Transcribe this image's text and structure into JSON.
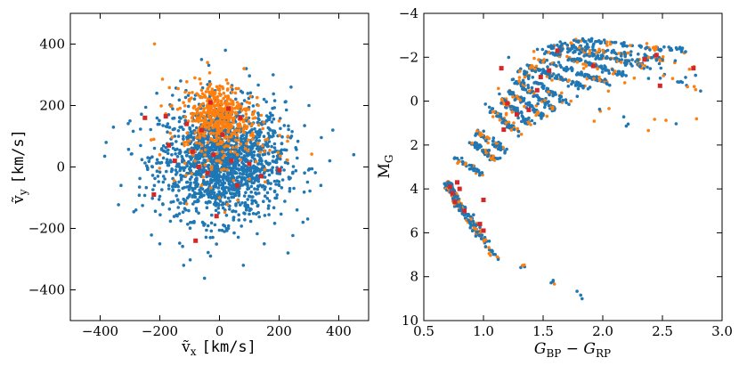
{
  "chart_data": [
    {
      "type": "scatter",
      "xlabel": "ṽx [km/s]",
      "ylabel": "ṽy [km/s]",
      "xlabel_parts": {
        "sym": "ṽ",
        "sub": "x",
        "unit": "[km/s]"
      },
      "ylabel_parts": {
        "sym": "ṽ",
        "sub": "y",
        "unit": "[km/s]"
      },
      "xlim": [
        -500,
        500
      ],
      "ylim": [
        -500,
        500
      ],
      "xticks": [
        -400,
        -200,
        0,
        200,
        400
      ],
      "yticks": [
        -400,
        -200,
        0,
        200,
        400
      ],
      "xtick_labels": [
        "−400",
        "−200",
        "0",
        "200",
        "400"
      ],
      "ytick_labels": [
        "−400",
        "−200",
        "0",
        "200",
        "400"
      ],
      "grid": false,
      "series": [
        {
          "color": "#1f77b4",
          "marker": "circle",
          "description_points": [
            [
              -210,
              240
            ],
            [
              -130,
              280
            ],
            [
              -60,
              350
            ],
            [
              20,
              380
            ],
            [
              90,
              320
            ],
            [
              -300,
              150
            ],
            [
              -380,
              80
            ],
            [
              -330,
              -60
            ],
            [
              -280,
              -140
            ],
            [
              -200,
              -250
            ],
            [
              -120,
              -320
            ],
            [
              -30,
              -290
            ],
            [
              80,
              -320
            ],
            [
              150,
              -250
            ],
            [
              230,
              -280
            ],
            [
              280,
              -180
            ],
            [
              340,
              -60
            ],
            [
              370,
              20
            ],
            [
              380,
              120
            ],
            [
              300,
              200
            ],
            [
              240,
              260
            ],
            [
              180,
              300
            ],
            [
              450,
              40
            ],
            [
              -150,
              100
            ],
            [
              -90,
              40
            ],
            [
              -40,
              -30
            ],
            [
              10,
              60
            ],
            [
              60,
              -80
            ],
            [
              120,
              20
            ],
            [
              -70,
              -150
            ],
            [
              30,
              -200
            ],
            [
              -170,
              -60
            ],
            [
              170,
              120
            ],
            [
              200,
              -60
            ],
            [
              -240,
              30
            ]
          ]
        },
        {
          "color": "#ff7f0e",
          "marker": "circle",
          "description_points": [
            [
              -60,
              250
            ],
            [
              -20,
              240
            ],
            [
              20,
              230
            ],
            [
              60,
              210
            ],
            [
              90,
              190
            ],
            [
              -100,
              220
            ],
            [
              -30,
              200
            ],
            [
              10,
              170
            ],
            [
              50,
              160
            ],
            [
              -80,
              150
            ],
            [
              110,
              140
            ],
            [
              30,
              120
            ],
            [
              -50,
              100
            ],
            [
              0,
              250
            ],
            [
              40,
              260
            ],
            [
              -120,
              80
            ],
            [
              160,
              90
            ],
            [
              -160,
              200
            ],
            [
              -40,
              340
            ],
            [
              80,
              120
            ],
            [
              130,
              200
            ],
            [
              -200,
              40
            ],
            [
              200,
              150
            ],
            [
              0,
              -100
            ],
            [
              -60,
              -60
            ],
            [
              100,
              -40
            ],
            [
              230,
              100
            ],
            [
              -110,
              -120
            ],
            [
              60,
              40
            ],
            [
              -10,
              20
            ]
          ]
        },
        {
          "color": "#d62728",
          "marker": "square",
          "points": [
            [
              -250,
              160
            ],
            [
              -180,
              165
            ],
            [
              -110,
              140
            ],
            [
              -60,
              120
            ],
            [
              10,
              105
            ],
            [
              70,
              160
            ],
            [
              -170,
              70
            ],
            [
              -90,
              50
            ],
            [
              -20,
              40
            ],
            [
              -150,
              20
            ],
            [
              -70,
              0
            ],
            [
              40,
              20
            ],
            [
              100,
              10
            ],
            [
              -40,
              -20
            ],
            [
              60,
              -60
            ],
            [
              140,
              -30
            ],
            [
              -220,
              -90
            ],
            [
              -10,
              -160
            ],
            [
              -80,
              -240
            ],
            [
              200,
              -10
            ],
            [
              -30,
              210
            ],
            [
              30,
              190
            ]
          ]
        }
      ]
    },
    {
      "type": "scatter",
      "xlabel": "GBP − GRP",
      "ylabel": "MG",
      "xlabel_parts": {
        "a": "G",
        "a_sub": "BP",
        "op": " − ",
        "b": "G",
        "b_sub": "RP"
      },
      "ylabel_parts": {
        "sym": "M",
        "sub": "G"
      },
      "xlim": [
        0.5,
        3.0
      ],
      "ylim": [
        10,
        -4
      ],
      "y_inverted": true,
      "xticks": [
        0.5,
        1.0,
        1.5,
        2.0,
        2.5,
        3.0
      ],
      "yticks": [
        -4,
        -2,
        0,
        2,
        4,
        6,
        8,
        10
      ],
      "xtick_labels": [
        "0.5",
        "1.0",
        "1.5",
        "2.0",
        "2.5",
        "3.0"
      ],
      "ytick_labels": [
        "−4",
        "−2",
        "0",
        "2",
        "4",
        "6",
        "8",
        "10"
      ],
      "grid": false,
      "series": [
        {
          "color": "#1f77b4",
          "marker": "circle",
          "description": "isochrone-like diagonal sequences; main sequence from (0.7,4) to (1.1,7); giant branches reaching up to (1.8,-2.7) and (2.9,-0.1)"
        },
        {
          "color": "#ff7f0e",
          "marker": "circle",
          "description": "overlapping the same sequences with fewer points"
        },
        {
          "color": "#d62728",
          "marker": "square",
          "points": [
            [
              0.72,
              3.9
            ],
            [
              0.74,
              4.2
            ],
            [
              0.78,
              3.7
            ],
            [
              0.8,
              4.0
            ],
            [
              0.84,
              5.0
            ],
            [
              0.97,
              5.6
            ],
            [
              1.0,
              5.9
            ],
            [
              0.76,
              4.6
            ],
            [
              1.2,
              0.1
            ],
            [
              1.17,
              1.3
            ],
            [
              1.28,
              0.6
            ],
            [
              1.45,
              -0.5
            ],
            [
              1.48,
              -1.1
            ],
            [
              1.55,
              -1.4
            ],
            [
              1.62,
              -2.3
            ],
            [
              1.92,
              -1.6
            ],
            [
              2.35,
              -1.9
            ],
            [
              2.45,
              -2.1
            ],
            [
              2.48,
              -0.7
            ],
            [
              2.76,
              -1.5
            ],
            [
              1.15,
              -1.5
            ],
            [
              1.38,
              0.4
            ],
            [
              1.0,
              4.5
            ]
          ]
        }
      ]
    }
  ]
}
